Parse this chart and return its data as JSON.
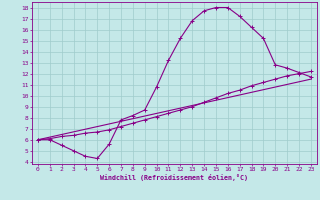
{
  "xlabel": "Windchill (Refroidissement éolien,°C)",
  "xlim": [
    -0.5,
    23.5
  ],
  "ylim": [
    3.8,
    18.5
  ],
  "xticks": [
    0,
    1,
    2,
    3,
    4,
    5,
    6,
    7,
    8,
    9,
    10,
    11,
    12,
    13,
    14,
    15,
    16,
    17,
    18,
    19,
    20,
    21,
    22,
    23
  ],
  "yticks": [
    4,
    5,
    6,
    7,
    8,
    9,
    10,
    11,
    12,
    13,
    14,
    15,
    16,
    17,
    18
  ],
  "bg_color": "#c4e8e8",
  "line_color": "#880088",
  "grid_color": "#a0cccc",
  "curve1_x": [
    0,
    1,
    2,
    3,
    4,
    5,
    6,
    7,
    8,
    9,
    10,
    11,
    12,
    13,
    14,
    15,
    16,
    17,
    18,
    19,
    20,
    21,
    22,
    23
  ],
  "curve1_y": [
    6.0,
    6.0,
    5.5,
    5.0,
    4.5,
    4.3,
    5.6,
    7.8,
    8.2,
    8.7,
    10.8,
    13.2,
    15.2,
    16.8,
    17.7,
    18.0,
    18.0,
    17.2,
    16.2,
    15.2,
    12.8,
    12.5,
    12.1,
    11.7
  ],
  "curve2_x": [
    0,
    1,
    2,
    3,
    4,
    5,
    6,
    7,
    8,
    9,
    10,
    11,
    12,
    13,
    14,
    15,
    16,
    17,
    18,
    19,
    20,
    21,
    22,
    23
  ],
  "curve2_y": [
    6.0,
    6.1,
    6.3,
    6.4,
    6.6,
    6.7,
    6.9,
    7.2,
    7.5,
    7.8,
    8.1,
    8.4,
    8.7,
    9.0,
    9.4,
    9.8,
    10.2,
    10.5,
    10.9,
    11.2,
    11.5,
    11.8,
    12.0,
    12.2
  ],
  "curve3_x": [
    0,
    23
  ],
  "curve3_y": [
    6.0,
    11.5
  ]
}
